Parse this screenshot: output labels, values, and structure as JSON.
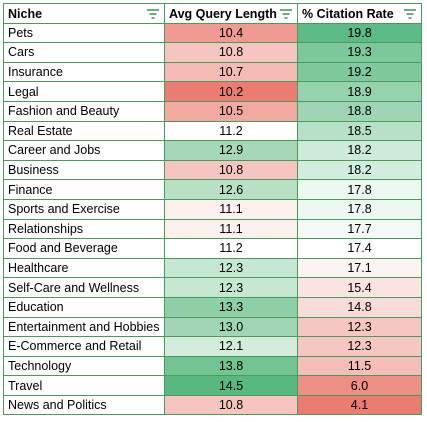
{
  "table": {
    "headers": [
      {
        "label": "Niche",
        "icon": "filter-icon"
      },
      {
        "label": "Avg Query Length",
        "icon": "filter-icon"
      },
      {
        "label": "% Citation Rate",
        "icon": "filter-icon"
      }
    ],
    "rows": [
      {
        "niche": "Pets",
        "avg_query_length": "10.4",
        "citation_rate": "19.8",
        "avg_color": "#ef9a92",
        "rate_color": "#5dbb87"
      },
      {
        "niche": "Cars",
        "avg_query_length": "10.8",
        "citation_rate": "19.3",
        "avg_color": "#f6c5c1",
        "rate_color": "#7cc79b"
      },
      {
        "niche": "Insurance",
        "avg_query_length": "10.7",
        "citation_rate": "19.2",
        "avg_color": "#f4bbb6",
        "rate_color": "#80c99e"
      },
      {
        "niche": "Legal",
        "avg_query_length": "10.2",
        "citation_rate": "18.9",
        "avg_color": "#ea7c72",
        "rate_color": "#97d2ae"
      },
      {
        "niche": "Fashion and Beauty",
        "avg_query_length": "10.5",
        "citation_rate": "18.8",
        "avg_color": "#f1a9a2",
        "rate_color": "#9fd5b4"
      },
      {
        "niche": "Real Estate",
        "avg_query_length": "11.2",
        "citation_rate": "18.5",
        "avg_color": "#ffffff",
        "rate_color": "#b8e0c7"
      },
      {
        "niche": "Career and Jobs",
        "avg_query_length": "12.9",
        "citation_rate": "18.2",
        "avg_color": "#a6d8b8",
        "rate_color": "#cdeada"
      },
      {
        "niche": "Business",
        "avg_query_length": "10.8",
        "citation_rate": "18.2",
        "avg_color": "#f6c5c1",
        "rate_color": "#d2ecdd"
      },
      {
        "niche": "Finance",
        "avg_query_length": "12.6",
        "citation_rate": "17.8",
        "avg_color": "#b7e0c5",
        "rate_color": "#ecf7f0"
      },
      {
        "niche": "Sports and Exercise",
        "avg_query_length": "11.1",
        "citation_rate": "17.8",
        "avg_color": "#fcefee",
        "rate_color": "#eef8f2"
      },
      {
        "niche": "Relationships",
        "avg_query_length": "11.1",
        "citation_rate": "17.7",
        "avg_color": "#fcf0ef",
        "rate_color": "#f4faf6"
      },
      {
        "niche": "Food and Beverage",
        "avg_query_length": "11.2",
        "citation_rate": "17.4",
        "avg_color": "#ffffff",
        "rate_color": "#ffffff"
      },
      {
        "niche": "Healthcare",
        "avg_query_length": "12.3",
        "citation_rate": "17.1",
        "avg_color": "#c6e7d2",
        "rate_color": "#fdf3f2"
      },
      {
        "niche": "Self-Care and Wellness",
        "avg_query_length": "12.3",
        "citation_rate": "15.4",
        "avg_color": "#c6e7d2",
        "rate_color": "#fae3e1"
      },
      {
        "niche": "Education",
        "avg_query_length": "13.3",
        "citation_rate": "14.8",
        "avg_color": "#8fcfa8",
        "rate_color": "#f9dcd9"
      },
      {
        "niche": "Entertainment and Hobbies",
        "avg_query_length": "13.0",
        "citation_rate": "12.3",
        "avg_color": "#a0d6b4",
        "rate_color": "#f6c6c2"
      },
      {
        "niche": "E-Commerce and Retail",
        "avg_query_length": "12.1",
        "citation_rate": "12.3",
        "avg_color": "#d3ecdc",
        "rate_color": "#f6c6c2"
      },
      {
        "niche": "Technology",
        "avg_query_length": "13.8",
        "citation_rate": "11.5",
        "avg_color": "#74c393",
        "rate_color": "#f4bdb8"
      },
      {
        "niche": "Travel",
        "avg_query_length": "14.5",
        "citation_rate": "6.0",
        "avg_color": "#57b880",
        "rate_color": "#ee8f86"
      },
      {
        "niche": "News and Politics",
        "avg_query_length": "10.8",
        "citation_rate": "4.1",
        "avg_color": "#f6c5c1",
        "rate_color": "#ea7c72"
      }
    ]
  }
}
